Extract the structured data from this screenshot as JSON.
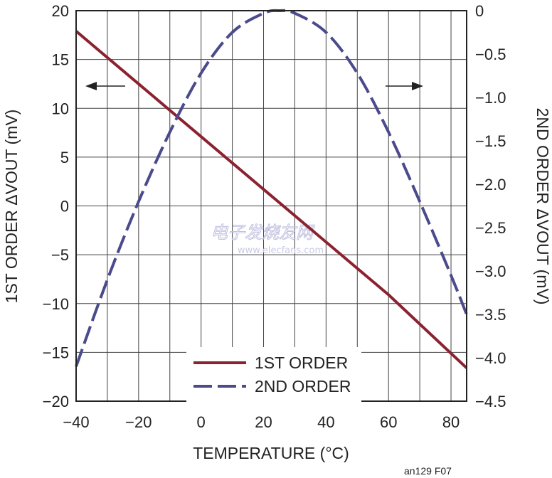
{
  "chart_data": {
    "type": "line",
    "xlabel": "TEMPERATURE (°C)",
    "ylabel": "1ST ORDER ΔVOUT (mV)",
    "y2label": "2ND ORDER ΔVOUT (mV)",
    "xlim": [
      -40,
      85
    ],
    "ylim": [
      -20,
      20
    ],
    "y2lim": [
      -4.5,
      0
    ],
    "x_ticks": [
      -40,
      -20,
      0,
      20,
      40,
      60,
      80
    ],
    "x_tick_labels": [
      "−40",
      "−20",
      "0",
      "20",
      "40",
      "60",
      "80"
    ],
    "y_ticks": [
      20,
      15,
      10,
      5,
      0,
      -5,
      -10,
      -15,
      -20
    ],
    "y_tick_labels": [
      "20",
      "15",
      "10",
      "5",
      "0",
      "−5",
      "−10",
      "−15",
      "−20"
    ],
    "y2_ticks": [
      0,
      -0.5,
      -1.0,
      -1.5,
      -2.0,
      -2.5,
      -3.0,
      -3.5,
      -4.0,
      -4.5
    ],
    "y2_tick_labels": [
      "0",
      "−0.5",
      "−1.0",
      "−1.5",
      "−2.0",
      "−2.5",
      "−3.0",
      "−3.5",
      "−4.0",
      "−4.5"
    ],
    "grid": true,
    "legend_position": "bottom-center",
    "series": [
      {
        "name": "1ST ORDER",
        "axis": "left",
        "color": "#8b2230",
        "style": "solid",
        "x": [
          -40,
          -20,
          0,
          20,
          40,
          60,
          85
        ],
        "y": [
          17.9,
          12.5,
          7.1,
          1.7,
          -3.7,
          -9.1,
          -16.6
        ]
      },
      {
        "name": "2ND ORDER",
        "axis": "right",
        "color": "#4a4a8c",
        "style": "dashed",
        "x": [
          -40,
          -30,
          -20,
          -10,
          0,
          10,
          20,
          25,
          30,
          40,
          50,
          60,
          70,
          80,
          85
        ],
        "y": [
          -4.1,
          -3.1,
          -2.2,
          -1.4,
          -0.72,
          -0.25,
          -0.03,
          0,
          -0.03,
          -0.25,
          -0.72,
          -1.4,
          -2.2,
          -3.05,
          -3.5
        ]
      }
    ],
    "annotations": [
      "←",
      "→"
    ]
  },
  "watermark": {
    "cn": "电子发烧友网",
    "url": "www.elecfans.com"
  },
  "figure_id": "an129 F07"
}
